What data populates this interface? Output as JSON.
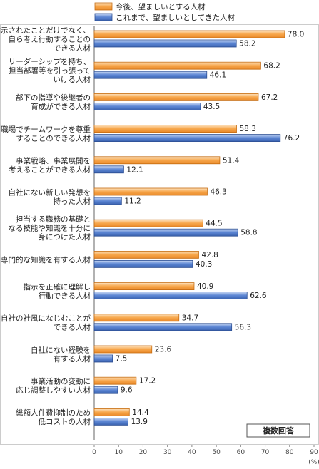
{
  "chart_data": {
    "type": "bar",
    "orientation": "horizontal",
    "categories": [
      [
        "指示されたことだけでなく、",
        "自ら考え行動することの",
        "できる人材"
      ],
      [
        "リーダーシップを持ち、",
        "担当部署等を引っ張って",
        "いける人材"
      ],
      [
        "部下の指導や後継者の",
        "育成ができる人材"
      ],
      [
        "職場でチームワークを尊重",
        "することのできる人材"
      ],
      [
        "事業戦略、事業展開を",
        "考えることができる人材"
      ],
      [
        "自社にない新しい発想を",
        "持った人材"
      ],
      [
        "担当する職務の基礎と",
        "なる技能や知識を十分に",
        "身につけた人材"
      ],
      [
        "専門的な知識を有する人材"
      ],
      [
        "指示を正確に理解し",
        "行動できる人材"
      ],
      [
        "自社の社風になじむことが",
        "できる人材"
      ],
      [
        "自社にない経験を",
        "有する人材"
      ],
      [
        "事業活動の変動に",
        "応じ調整しやすい人材"
      ],
      [
        "総額人件費抑制のため",
        "低コストの人材"
      ]
    ],
    "series": [
      {
        "name": "今後、望ましいとする人材",
        "color": "#f7a64a",
        "values": [
          78.0,
          68.2,
          67.2,
          58.3,
          51.4,
          46.3,
          44.5,
          42.8,
          40.9,
          34.7,
          23.6,
          17.2,
          14.4
        ]
      },
      {
        "name": "これまで、望ましいとしてきた人材",
        "color": "#5b85d3",
        "values": [
          58.2,
          46.1,
          43.5,
          76.2,
          12.1,
          11.2,
          58.8,
          40.3,
          62.6,
          56.3,
          7.5,
          9.6,
          13.9
        ]
      }
    ],
    "value_labels": [
      [
        "78.0",
        "68.2",
        "67.2",
        "58.3",
        "51.4",
        "46.3",
        "44.5",
        "42.8",
        "40.9",
        "34.7",
        "23.6",
        "17.2",
        "14.4"
      ],
      [
        "58.2",
        "46.1",
        "43.5",
        "76.2",
        "12.1",
        "11.2",
        "58.8",
        "40.3",
        "62.6",
        "56.3",
        "7.5",
        "9.6",
        "13.9"
      ]
    ],
    "xlim": [
      0,
      90
    ],
    "xticks": [
      "0",
      "10",
      "20",
      "30",
      "40",
      "50",
      "60",
      "70",
      "80",
      "90"
    ],
    "xunit": "(%)",
    "note": "複数回答",
    "legend_position": "top",
    "grid": false
  }
}
